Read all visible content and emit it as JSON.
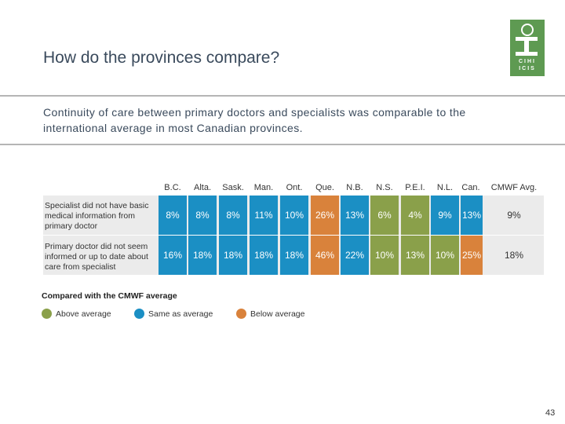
{
  "header": {
    "title": "How do the provinces compare?",
    "subtitle": "Continuity of care between primary doctors and specialists was comparable to the international average in most Canadian provinces."
  },
  "logo": {
    "line1": "CIHI",
    "line2": "ICIS"
  },
  "table": {
    "columns": [
      "B.C.",
      "Alta.",
      "Sask.",
      "Man.",
      "Ont.",
      "Que.",
      "N.B.",
      "N.S.",
      "P.E.I.",
      "N.L.",
      "Can.",
      "CMWF Avg."
    ],
    "rows": [
      {
        "label": "Specialist did not have basic medical information from primary doctor",
        "values": [
          "8%",
          "8%",
          "8%",
          "11%",
          "10%",
          "26%",
          "13%",
          "6%",
          "4%",
          "9%",
          "13%",
          "9%"
        ],
        "status": [
          "same",
          "same",
          "same",
          "same",
          "same",
          "below",
          "same",
          "above",
          "above",
          "same",
          "same",
          "none"
        ]
      },
      {
        "label": "Primary doctor did not seem informed or up to date about care from specialist",
        "values": [
          "16%",
          "18%",
          "18%",
          "18%",
          "18%",
          "46%",
          "22%",
          "10%",
          "13%",
          "10%",
          "25%",
          "18%"
        ],
        "status": [
          "same",
          "same",
          "same",
          "same",
          "same",
          "below",
          "same",
          "above",
          "above",
          "above",
          "below",
          "none"
        ]
      }
    ]
  },
  "legend": {
    "title": "Compared with the CMWF average",
    "items": [
      {
        "label": "Above average",
        "color": "#8aa04a"
      },
      {
        "label": "Same as average",
        "color": "#1b8fc4"
      },
      {
        "label": "Below average",
        "color": "#d9823b"
      }
    ]
  },
  "colors": {
    "same": "#1b8fc4",
    "above": "#8aa04a",
    "below": "#d9823b",
    "none": "#ebebeb"
  },
  "page_number": "43"
}
